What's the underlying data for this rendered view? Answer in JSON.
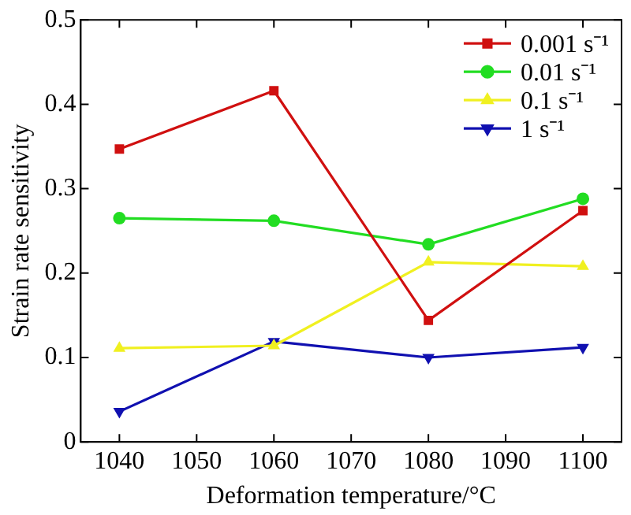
{
  "chart_data": {
    "type": "line",
    "xlabel": "Deformation temperature/°C",
    "ylabel": "Strain rate sensitivity",
    "x": [
      1040,
      1060,
      1080,
      1100
    ],
    "xlim": [
      1035,
      1105
    ],
    "xticks": [
      1040,
      1050,
      1060,
      1070,
      1080,
      1090,
      1100
    ],
    "ylim": [
      0,
      0.5
    ],
    "yticks": [
      0,
      0.1,
      0.2,
      0.3,
      0.4,
      0.5
    ],
    "grid": false,
    "legend": "top right",
    "line_style": "solid",
    "series": [
      {
        "name": "0.001 s⁻¹",
        "color": "#d01010",
        "marker": "square",
        "values": [
          0.347,
          0.416,
          0.144,
          0.274
        ]
      },
      {
        "name": "0.01 s⁻¹",
        "color": "#22dd22",
        "marker": "circle",
        "values": [
          0.265,
          0.262,
          0.234,
          0.288
        ]
      },
      {
        "name": "0.1 s⁻¹",
        "color": "#f0f020",
        "marker": "triangle",
        "values": [
          0.111,
          0.114,
          0.213,
          0.208
        ]
      },
      {
        "name": "1 s⁻¹",
        "color": "#1010b0",
        "marker": "triangle-down",
        "values": [
          0.036,
          0.119,
          0.1,
          0.112
        ]
      }
    ]
  }
}
